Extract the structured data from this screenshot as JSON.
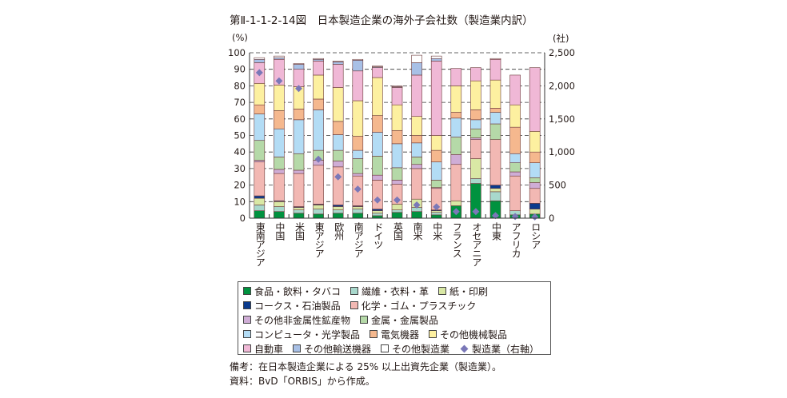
{
  "title": "第Ⅱ-1-1-2-14図　日本製造企業の海外子会社数（製造業内訳）",
  "notes": [
    "備考：在日本製造企業による 25% 以上出資先企業（製造業）。",
    "資料：BvD「ORBIS」から作成。"
  ],
  "chart_data": {
    "type": "bar",
    "stacked": true,
    "title": "日本製造企業の海外子会社数（製造業内訳）",
    "ylabel": "(%)",
    "y2label": "(社)",
    "ylim": [
      0,
      100
    ],
    "y2lim": [
      0,
      2500
    ],
    "yticks": [
      "0",
      "10",
      "20",
      "30",
      "40",
      "50",
      "60",
      "70",
      "80",
      "90",
      "100"
    ],
    "y2ticks": [
      "0",
      "500",
      "1,000",
      "1,500",
      "2,000",
      "2,500"
    ],
    "grid": true,
    "legend_position": "bottom",
    "categories": [
      "東南アジア",
      "中国",
      "米国",
      "東アジア",
      "欧州",
      "南アジア",
      "ドイツ",
      "英国",
      "南米",
      "中米",
      "フランス",
      "オセアニア",
      "中東",
      "アフリカ",
      "ロシア"
    ],
    "series": [
      {
        "name": "食品・飲料・タバコ",
        "color": "#00923f",
        "values": [
          4.5,
          4,
          3,
          2.5,
          3,
          3,
          1.5,
          3.5,
          4,
          2,
          7.5,
          21,
          10.5,
          2,
          2.5
        ]
      },
      {
        "name": "繊維・衣料・革",
        "color": "#a8d8cc",
        "values": [
          3.5,
          3,
          2,
          3,
          2,
          2.5,
          1.5,
          1.5,
          2.5,
          1.5,
          0,
          3,
          5.5,
          2.5,
          0
        ]
      },
      {
        "name": "紙・印刷",
        "color": "#d9e8a5",
        "values": [
          4,
          3,
          1.5,
          2.5,
          2,
          1.5,
          1.5,
          3.5,
          5,
          1,
          3,
          12,
          2,
          0,
          3
        ]
      },
      {
        "name": "コークス・石油製品",
        "color": "#0a3a8c",
        "values": [
          1.5,
          0.5,
          0.5,
          0.5,
          1,
          0.5,
          1,
          0,
          0,
          0.5,
          0,
          0,
          2,
          0,
          3.5
        ]
      },
      {
        "name": "化学・ゴム・プラスチック",
        "color": "#f2b8b3",
        "values": [
          20.5,
          16.5,
          20,
          23.5,
          23,
          18,
          17.5,
          12,
          18.5,
          13,
          22,
          11.5,
          27.5,
          21,
          9
        ]
      },
      {
        "name": "その他非金属性鉱産物",
        "color": "#cfadd6",
        "values": [
          1,
          2.5,
          2,
          3,
          3.5,
          1.5,
          3,
          2.5,
          2.5,
          0.5,
          6,
          1,
          0,
          2.5,
          3.5
        ]
      },
      {
        "name": "金属・金属製品",
        "color": "#b5d9a8",
        "values": [
          12,
          7.5,
          10,
          6,
          6.5,
          9,
          11.5,
          7.5,
          4.5,
          4.5,
          10.5,
          5.5,
          9.5,
          5.5,
          3
        ]
      },
      {
        "name": "コンピュータ・光学製品",
        "color": "#b3dcf5",
        "values": [
          16,
          17,
          20.5,
          24.5,
          9.5,
          5,
          14.5,
          14.5,
          8.5,
          11,
          11.5,
          5.5,
          7,
          5.5,
          9
        ]
      },
      {
        "name": "電気機器",
        "color": "#f5b88e",
        "values": [
          5.5,
          11,
          6.5,
          6.5,
          8,
          8.5,
          10,
          8,
          4.5,
          7,
          3.5,
          6,
          2.5,
          16,
          6.5
        ]
      },
      {
        "name": "その他機械製品",
        "color": "#fdf0a0",
        "values": [
          13,
          15.5,
          13.5,
          14.5,
          20.5,
          21.5,
          23,
          15.5,
          11.5,
          9,
          16,
          17.5,
          17,
          13.5,
          12.5
        ]
      },
      {
        "name": "自動車",
        "color": "#f0b8d6",
        "values": [
          12.5,
          15.5,
          10.5,
          8.5,
          14,
          18,
          6,
          10.5,
          25,
          45,
          10.5,
          8,
          12.5,
          18,
          38.5
        ]
      },
      {
        "name": "その他輸送機器",
        "color": "#a8c0e6",
        "values": [
          2,
          1,
          3,
          1,
          1.5,
          6.5,
          0.5,
          0.5,
          7.5,
          1.5,
          0,
          0,
          0,
          0,
          0
        ]
      },
      {
        "name": "その他製造業",
        "color": "#ffffff",
        "values": [
          1,
          1,
          0.5,
          0.5,
          0.5,
          0.5,
          0.5,
          0.5,
          4.5,
          1.5,
          0,
          0,
          0.5,
          0,
          0
        ]
      }
    ],
    "line_series": {
      "name": "製造業（右軸）",
      "axis": "right",
      "marker": "diamond",
      "color": "#7a78b8",
      "values": [
        2200,
        2075,
        1960,
        890,
        625,
        440,
        275,
        275,
        200,
        170,
        100,
        100,
        40,
        25,
        20
      ]
    }
  }
}
